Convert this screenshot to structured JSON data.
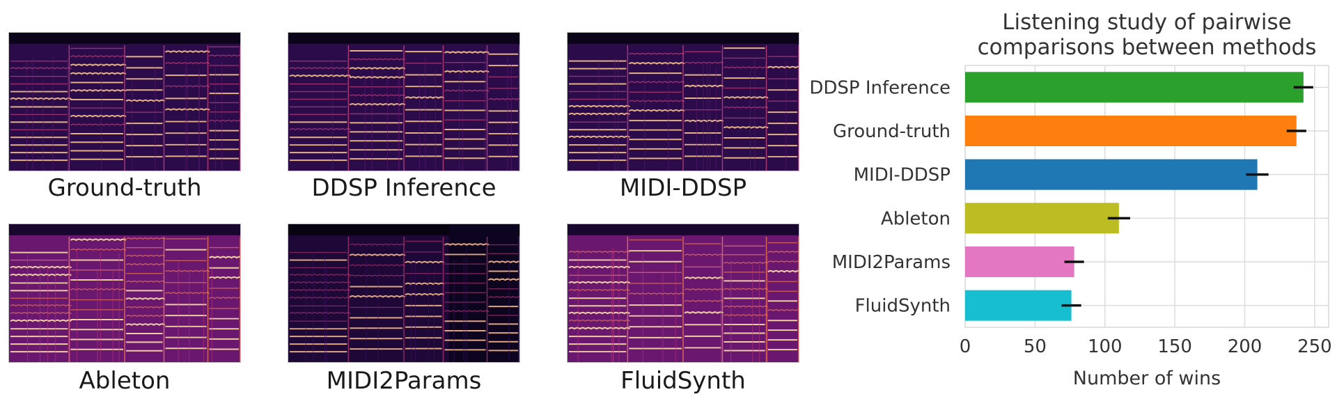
{
  "spectrograms": [
    {
      "label": "Ground-truth",
      "style": "normal"
    },
    {
      "label": "DDSP Inference",
      "style": "normal"
    },
    {
      "label": "MIDI-DDSP",
      "style": "normal"
    },
    {
      "label": "Ableton",
      "style": "bright"
    },
    {
      "label": "MIDI2Params",
      "style": "dark"
    },
    {
      "label": "FluidSynth",
      "style": "bright"
    }
  ],
  "chart_data": {
    "type": "bar",
    "orientation": "horizontal",
    "title": [
      "Listening study of pairwise",
      "comparisons between methods"
    ],
    "xlabel": "Number of wins",
    "ylabel": "",
    "xlim": [
      0,
      260
    ],
    "xticks": [
      "0",
      "50",
      "100",
      "150",
      "200",
      "250"
    ],
    "grid": true,
    "categories": [
      "DDSP Inference",
      "Ground-truth",
      "MIDI-DDSP",
      "Ableton",
      "MIDI2Params",
      "FluidSynth"
    ],
    "values": [
      242,
      237,
      209,
      110,
      78,
      76
    ],
    "errors": [
      7,
      7,
      8,
      8,
      7,
      7
    ],
    "colors": [
      "#2ca02c",
      "#ff7f0e",
      "#1f77b4",
      "#bcbd22",
      "#e377c2",
      "#17becf"
    ]
  }
}
